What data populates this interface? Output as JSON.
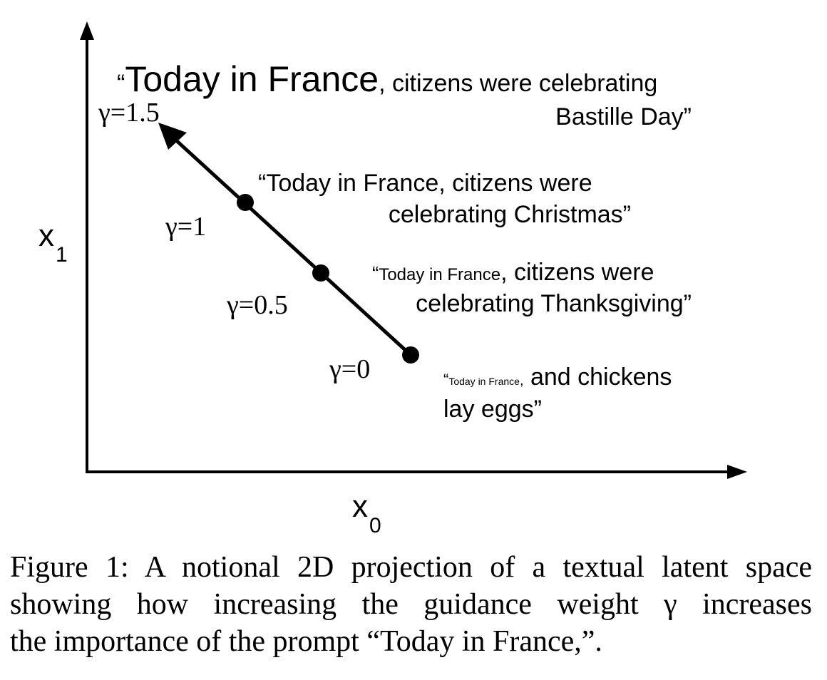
{
  "axes": {
    "x_label": "x",
    "x_sub": "0",
    "y_label": "x",
    "y_sub": "1"
  },
  "points": [
    {
      "gamma_label": "γ=1.5",
      "gamma": 1.5
    },
    {
      "gamma_label": "γ=1",
      "gamma": 1
    },
    {
      "gamma_label": "γ=0.5",
      "gamma": 0.5
    },
    {
      "gamma_label": "γ=0",
      "gamma": 0
    }
  ],
  "texts": {
    "g15": {
      "open": "“",
      "prompt": "Today in France",
      "rest_line1": ", citizens were celebrating",
      "rest_line2": "Bastille Day”"
    },
    "g1": {
      "line1": "“Today in France, citizens were",
      "line2": "celebrating Christmas”"
    },
    "g05": {
      "open": "“",
      "prompt": "Today in France",
      "rest_line1": ", citizens were",
      "line2": "celebrating Thanksgiving”"
    },
    "g0": {
      "open": "“",
      "prompt": "Today in France",
      "comma": ",",
      "rest_line1": " and chickens",
      "line2": "lay eggs”"
    }
  },
  "caption": {
    "line1": "Figure 1: A notional 2D projection of a textual latent space",
    "line2": "showing how increasing the guidance weight γ increases",
    "line3": "the importance of the prompt “Today in France,”."
  }
}
